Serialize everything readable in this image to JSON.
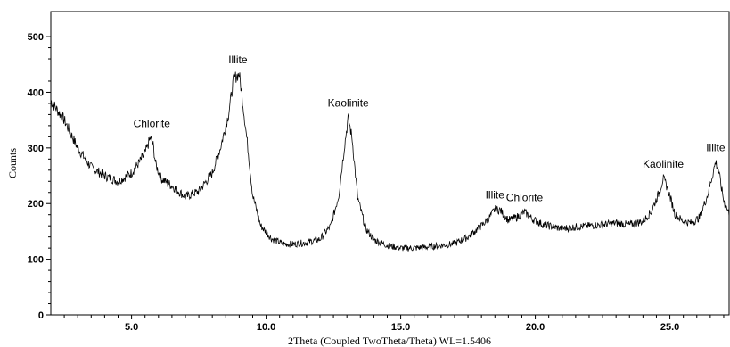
{
  "chart_data": {
    "type": "line",
    "xlabel": "2Theta (Coupled TwoTheta/Theta) WL=1.5406",
    "ylabel": "Counts",
    "xlim": [
      2.0,
      27.2
    ],
    "ylim": [
      0,
      545
    ],
    "x_ticks": [
      5.0,
      10.0,
      15.0,
      20.0,
      25.0
    ],
    "x_tick_labels": [
      "5.0",
      "10.0",
      "15.0",
      "20.0",
      "25.0"
    ],
    "y_ticks": [
      0,
      100,
      200,
      300,
      400,
      500
    ],
    "y_tick_labels": [
      "0",
      "100",
      "200",
      "300",
      "400",
      "500"
    ],
    "grid": false,
    "line_color": "#000000",
    "series": [
      {
        "x": [
          2.0,
          2.5,
          3.0,
          3.5,
          4.0,
          4.5,
          5.0,
          5.3,
          5.5,
          5.7,
          5.8,
          5.9,
          6.1,
          6.5,
          7.0,
          7.5,
          8.0,
          8.3,
          8.6,
          8.8,
          9.0,
          9.1,
          9.3,
          9.5,
          9.8,
          10.2,
          10.6,
          11.0,
          11.5,
          12.0,
          12.4,
          12.7,
          12.9,
          13.05,
          13.2,
          13.4,
          13.7,
          14.0,
          14.5,
          15.0,
          15.5,
          16.0,
          16.5,
          17.0,
          17.5,
          18.0,
          18.3,
          18.5,
          18.7,
          19.0,
          19.3,
          19.6,
          19.9,
          20.3,
          21.0,
          21.5,
          22.0,
          22.5,
          23.0,
          23.5,
          24.0,
          24.3,
          24.6,
          24.75,
          24.9,
          25.2,
          25.5,
          25.8,
          26.1,
          26.4,
          26.6,
          26.7,
          26.8,
          27.0,
          27.2
        ],
        "y": [
          385,
          350,
          300,
          265,
          250,
          240,
          255,
          275,
          290,
          318,
          305,
          270,
          245,
          232,
          212,
          222,
          255,
          300,
          360,
          425,
          433,
          395,
          310,
          215,
          160,
          137,
          128,
          127,
          130,
          136,
          160,
          215,
          300,
          355,
          315,
          210,
          155,
          135,
          125,
          120,
          120,
          122,
          125,
          128,
          140,
          160,
          175,
          190,
          188,
          170,
          175,
          185,
          172,
          162,
          155,
          158,
          160,
          162,
          165,
          162,
          168,
          185,
          220,
          245,
          230,
          180,
          168,
          165,
          175,
          215,
          255,
          275,
          262,
          205,
          182
        ]
      }
    ],
    "annotations": [
      {
        "text": "Chlorite",
        "x": 5.75,
        "y": 318
      },
      {
        "text": "Illite",
        "x": 8.95,
        "y": 433
      },
      {
        "text": "Kaolinite",
        "x": 13.05,
        "y": 355
      },
      {
        "text": "Illite",
        "x": 18.5,
        "y": 190
      },
      {
        "text": "Chlorite",
        "x": 19.6,
        "y": 185
      },
      {
        "text": "Kaolinite",
        "x": 24.75,
        "y": 245
      },
      {
        "text": "Illite",
        "x": 26.7,
        "y": 275
      }
    ]
  }
}
